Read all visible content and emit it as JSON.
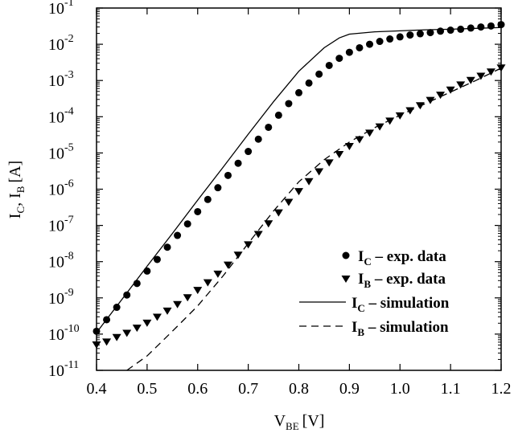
{
  "chart_data": {
    "type": "line",
    "title": "",
    "xlabel": {
      "main": "V",
      "sub": "BE",
      "unit": "[V]"
    },
    "ylabel": {
      "p1": "I",
      "s1": "C",
      "sep": ", I",
      "s2": "B",
      "unit": "[A]"
    },
    "xlim": [
      0.4,
      1.2
    ],
    "ylim": [
      1e-11,
      0.1
    ],
    "yscale": "log",
    "grid": false,
    "legend_placement": "bottom-right",
    "x_ticks": [
      "0.4",
      "0.5",
      "0.6",
      "0.7",
      "0.8",
      "0.9",
      "1.0",
      "1.1",
      "1.2"
    ],
    "y_ticks": [
      {
        "base": "10",
        "exp": "-11"
      },
      {
        "base": "10",
        "exp": "-10"
      },
      {
        "base": "10",
        "exp": "-9"
      },
      {
        "base": "10",
        "exp": "-8"
      },
      {
        "base": "10",
        "exp": "-7"
      },
      {
        "base": "10",
        "exp": "-6"
      },
      {
        "base": "10",
        "exp": "-5"
      },
      {
        "base": "10",
        "exp": "-4"
      },
      {
        "base": "10",
        "exp": "-3"
      },
      {
        "base": "10",
        "exp": "-2"
      },
      {
        "base": "10",
        "exp": "-1"
      }
    ],
    "series": [
      {
        "name": {
          "main": "I",
          "sub": "C",
          "rest": " – exp. data"
        },
        "marker": "circle",
        "x": [
          0.4,
          0.42,
          0.44,
          0.46,
          0.48,
          0.5,
          0.52,
          0.54,
          0.56,
          0.58,
          0.6,
          0.62,
          0.64,
          0.66,
          0.68,
          0.7,
          0.72,
          0.74,
          0.76,
          0.78,
          0.8,
          0.82,
          0.84,
          0.86,
          0.88,
          0.9,
          0.92,
          0.94,
          0.96,
          0.98,
          1.0,
          1.02,
          1.04,
          1.06,
          1.08,
          1.1,
          1.12,
          1.14,
          1.16,
          1.18,
          1.2
        ],
        "y": [
          1.2e-10,
          2.5e-10,
          5.5e-10,
          1.2e-09,
          2.5e-09,
          5.5e-09,
          1.15e-08,
          2.5e-08,
          5.3e-08,
          1.1e-07,
          2.4e-07,
          5.2e-07,
          1.1e-06,
          2.4e-06,
          5.2e-06,
          1.1e-05,
          2.4e-05,
          5.1e-05,
          0.00011,
          0.00023,
          0.00046,
          0.00085,
          0.0015,
          0.0026,
          0.0041,
          0.006,
          0.008,
          0.01,
          0.012,
          0.014,
          0.016,
          0.018,
          0.0195,
          0.021,
          0.023,
          0.0245,
          0.026,
          0.028,
          0.03,
          0.032,
          0.035
        ]
      },
      {
        "name": {
          "main": "I",
          "sub": "B",
          "rest": " – exp. data"
        },
        "marker": "triangle-down",
        "x": [
          0.4,
          0.42,
          0.44,
          0.46,
          0.48,
          0.5,
          0.52,
          0.54,
          0.56,
          0.58,
          0.6,
          0.62,
          0.64,
          0.66,
          0.68,
          0.7,
          0.72,
          0.74,
          0.76,
          0.78,
          0.8,
          0.82,
          0.84,
          0.86,
          0.88,
          0.9,
          0.92,
          0.94,
          0.96,
          0.98,
          1.0,
          1.02,
          1.04,
          1.06,
          1.08,
          1.1,
          1.12,
          1.14,
          1.16,
          1.18,
          1.2
        ],
        "y": [
          5e-11,
          6e-11,
          8e-11,
          1.05e-10,
          1.45e-10,
          2e-10,
          2.9e-10,
          4.3e-10,
          6.5e-10,
          1e-09,
          1.6e-09,
          2.6e-09,
          4.5e-09,
          8e-09,
          1.5e-08,
          2.9e-08,
          5.6e-08,
          1.1e-07,
          2.2e-07,
          4.3e-07,
          8.5e-07,
          1.6e-06,
          3e-06,
          5.3e-06,
          9e-06,
          1.5e-05,
          2.3e-05,
          3.5e-05,
          5.2e-05,
          7.5e-05,
          0.000105,
          0.000145,
          0.0002,
          0.00028,
          0.00039,
          0.00054,
          0.00075,
          0.001,
          0.0013,
          0.0017,
          0.0022
        ]
      },
      {
        "name": {
          "main": "I",
          "sub": "C",
          "rest": " – simulation"
        },
        "style": "solid",
        "x": [
          0.4,
          0.45,
          0.5,
          0.55,
          0.6,
          0.65,
          0.7,
          0.75,
          0.8,
          0.85,
          0.88,
          0.9,
          0.95,
          1.0,
          1.05,
          1.1,
          1.15,
          1.2
        ],
        "y": [
          1.1e-10,
          9e-10,
          7.5e-09,
          6e-08,
          5e-07,
          4e-06,
          3.3e-05,
          0.00026,
          0.0018,
          0.008,
          0.015,
          0.019,
          0.022,
          0.0235,
          0.025,
          0.026,
          0.0275,
          0.029
        ]
      },
      {
        "name": {
          "main": "I",
          "sub": "B",
          "rest": " – simulation"
        },
        "style": "dashed",
        "x": [
          0.46,
          0.5,
          0.55,
          0.6,
          0.65,
          0.7,
          0.75,
          0.8,
          0.85,
          0.9,
          0.95,
          1.0,
          1.05,
          1.1,
          1.15,
          1.2
        ],
        "y": [
          1e-11,
          2.5e-11,
          1.2e-10,
          6e-10,
          4e-09,
          3.2e-08,
          2.5e-07,
          1.6e-06,
          6.5e-06,
          2e-05,
          5e-05,
          0.00011,
          0.00023,
          0.00048,
          0.001,
          0.0022
        ]
      }
    ]
  }
}
